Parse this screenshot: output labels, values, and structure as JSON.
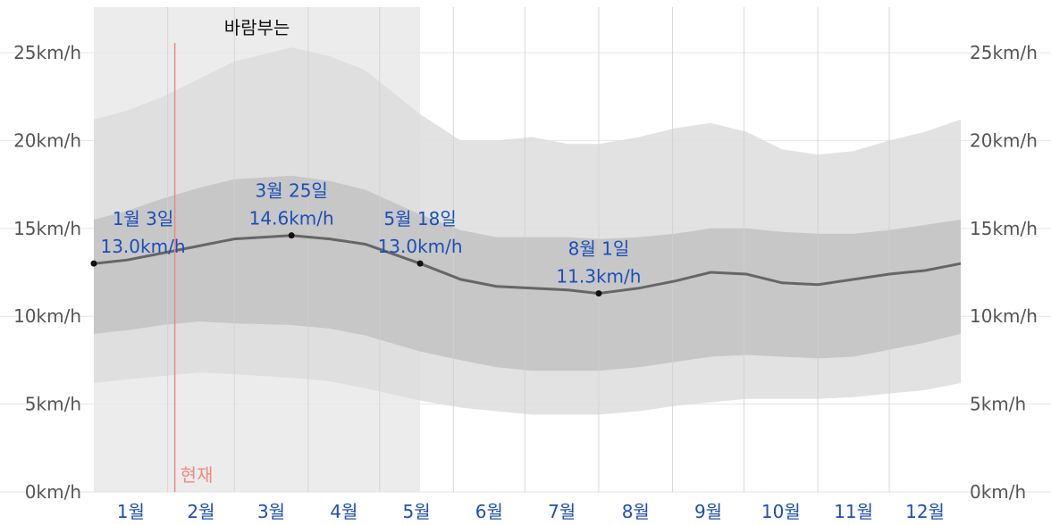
{
  "chart_data": {
    "type": "area",
    "y_unit": "km/h",
    "ylim": [
      0,
      27
    ],
    "y_ticks": [
      {
        "value": 0,
        "label": "0km/h"
      },
      {
        "value": 5,
        "label": "5km/h"
      },
      {
        "value": 10,
        "label": "10km/h"
      },
      {
        "value": 15,
        "label": "15km/h"
      },
      {
        "value": 20,
        "label": "20km/h"
      },
      {
        "value": 25,
        "label": "25km/h"
      }
    ],
    "months": [
      "1월",
      "2월",
      "3월",
      "4월",
      "5월",
      "6월",
      "7월",
      "8월",
      "9월",
      "10월",
      "11월",
      "12월"
    ],
    "season": {
      "label": "바람부는",
      "start_day": 1,
      "end_day": 138
    },
    "now": {
      "label": "현재",
      "day": 35
    },
    "x_day": [
      1,
      15,
      30,
      45,
      60,
      84,
      100,
      115,
      138,
      155,
      170,
      185,
      200,
      213,
      230,
      245,
      260,
      275,
      290,
      305,
      320,
      335,
      350,
      365
    ],
    "series": [
      {
        "name": "p90",
        "values": [
          21.2,
          21.7,
          22.5,
          23.5,
          24.5,
          25.3,
          24.8,
          24.0,
          21.5,
          20.0,
          20.0,
          20.2,
          19.8,
          19.8,
          20.2,
          20.7,
          21.0,
          20.5,
          19.5,
          19.2,
          19.4,
          20.0,
          20.5,
          21.2
        ]
      },
      {
        "name": "p75",
        "values": [
          15.5,
          16.0,
          16.7,
          17.3,
          17.8,
          18.0,
          17.7,
          17.2,
          15.8,
          14.9,
          14.5,
          14.5,
          14.5,
          14.4,
          14.5,
          14.7,
          15.0,
          15.0,
          14.8,
          14.7,
          14.7,
          14.9,
          15.2,
          15.5
        ]
      },
      {
        "name": "average",
        "values": [
          13.0,
          13.2,
          13.6,
          14.0,
          14.4,
          14.6,
          14.4,
          14.1,
          13.0,
          12.1,
          11.7,
          11.6,
          11.5,
          11.3,
          11.6,
          12.0,
          12.5,
          12.4,
          11.9,
          11.8,
          12.1,
          12.4,
          12.6,
          13.0
        ]
      },
      {
        "name": "p25",
        "values": [
          9.0,
          9.2,
          9.5,
          9.7,
          9.6,
          9.5,
          9.3,
          8.9,
          8.0,
          7.5,
          7.1,
          6.9,
          6.9,
          6.9,
          7.1,
          7.4,
          7.7,
          7.8,
          7.7,
          7.6,
          7.7,
          8.1,
          8.5,
          9.0
        ]
      },
      {
        "name": "p10",
        "values": [
          6.2,
          6.4,
          6.6,
          6.8,
          6.7,
          6.5,
          6.3,
          5.9,
          5.2,
          4.8,
          4.6,
          4.4,
          4.4,
          4.4,
          4.6,
          4.9,
          5.1,
          5.3,
          5.3,
          5.3,
          5.4,
          5.6,
          5.8,
          6.2
        ]
      }
    ],
    "annotations": [
      {
        "day": 1,
        "date": "1월 3일",
        "value_label": "13.0km/h",
        "value": 13.0
      },
      {
        "day": 84,
        "date": "3월 25일",
        "value_label": "14.6km/h",
        "value": 14.6
      },
      {
        "day": 138,
        "date": "5월 18일",
        "value_label": "13.0km/h",
        "value": 13.0
      },
      {
        "day": 213,
        "date": "8월 1일",
        "value_label": "11.3km/h",
        "value": 11.3
      }
    ],
    "colors": {
      "season_bg": "#ececec",
      "band_outer": "#dddddd",
      "band_inner": "#c4c4c4",
      "avg_line": "#666666",
      "point": "#111111",
      "now_line": "#ee8a80",
      "grid": "#cfcfcf"
    }
  }
}
